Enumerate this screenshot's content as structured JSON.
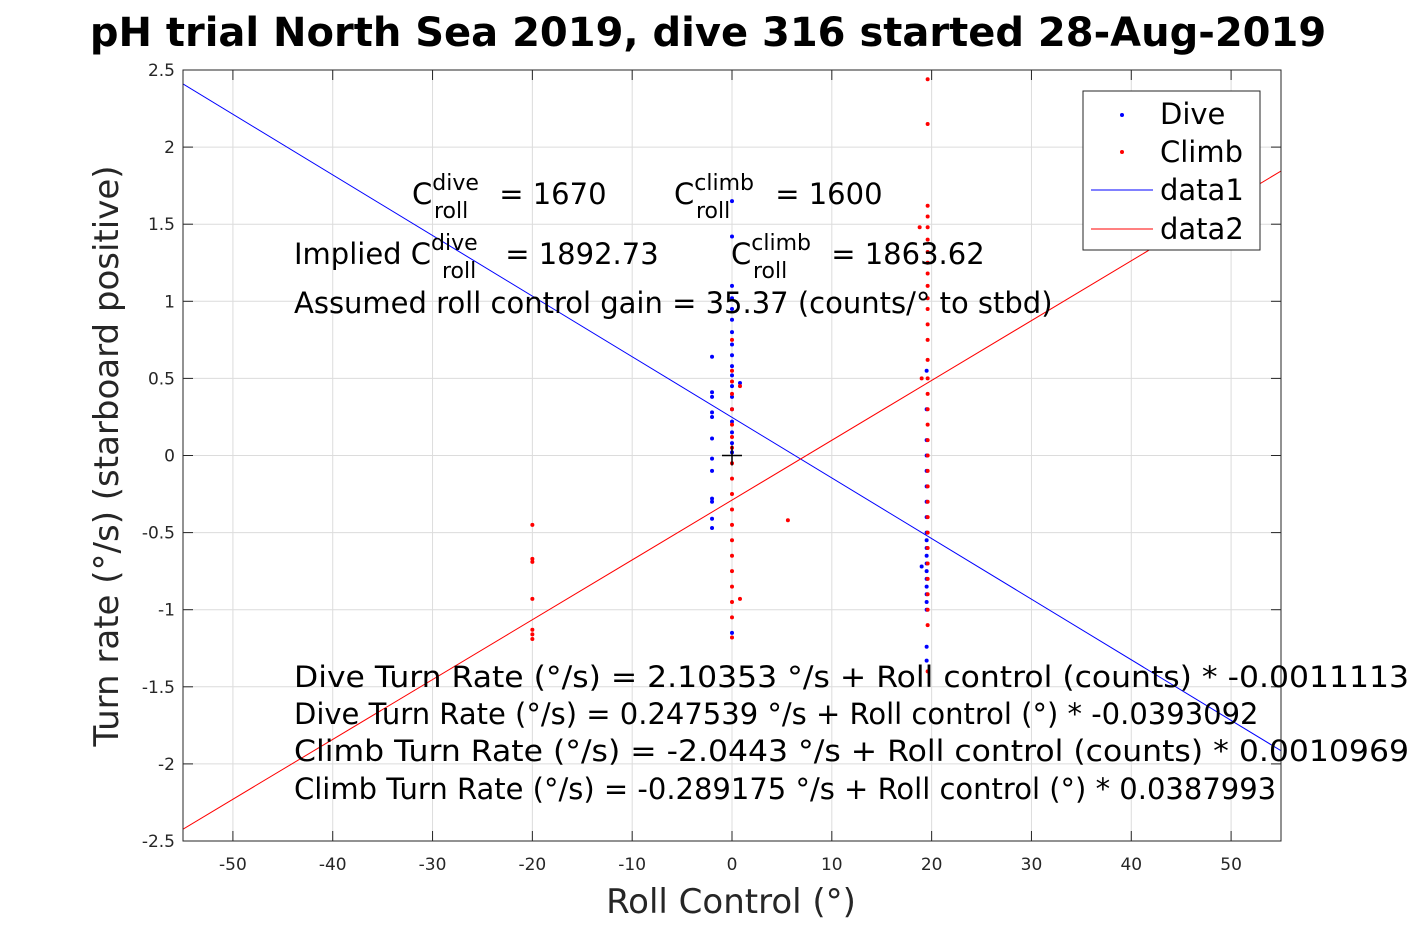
{
  "title": "pH trial North Sea 2019, dive 316 started 28-Aug-2019",
  "chart_data": {
    "type": "scatter",
    "xlabel": "Roll Control (°)",
    "ylabel": "Turn rate (°/s) (starboard positive)",
    "xlim": [
      -55,
      55
    ],
    "ylim": [
      -2.5,
      2.5
    ],
    "xticks": [
      -50,
      -40,
      -30,
      -20,
      -10,
      0,
      10,
      20,
      30,
      40,
      50
    ],
    "yticks": [
      -2.5,
      -2,
      -1.5,
      -1,
      -0.5,
      0,
      0.5,
      1,
      1.5,
      2,
      2.5
    ],
    "grid": true,
    "legend_position": "top-right",
    "series": [
      {
        "name": "Dive",
        "kind": "points",
        "color": "#0000ff",
        "points": [
          [
            0,
            1.65
          ],
          [
            0,
            1.42
          ],
          [
            0,
            1.1
          ],
          [
            0,
            1.02
          ],
          [
            0,
            0.95
          ],
          [
            0,
            0.88
          ],
          [
            0,
            0.8
          ],
          [
            0,
            0.72
          ],
          [
            0,
            0.65
          ],
          [
            0,
            0.58
          ],
          [
            0,
            0.52
          ],
          [
            0,
            0.45
          ],
          [
            0,
            0.38
          ],
          [
            0,
            0.3
          ],
          [
            0,
            0.22
          ],
          [
            0,
            0.15
          ],
          [
            0,
            0.08
          ],
          [
            0,
            0.02
          ],
          [
            0,
            -1.15
          ],
          [
            0.8,
            0.47
          ],
          [
            -2,
            0.64
          ],
          [
            -2,
            0.41
          ],
          [
            -2,
            0.38
          ],
          [
            -2,
            0.28
          ],
          [
            -2,
            0.25
          ],
          [
            -2,
            0.11
          ],
          [
            -2,
            -0.02
          ],
          [
            -2,
            -0.1
          ],
          [
            -2,
            -0.28
          ],
          [
            -2,
            -0.3
          ],
          [
            -2,
            -0.41
          ],
          [
            -2,
            -0.47
          ],
          [
            19.5,
            0.55
          ],
          [
            19.5,
            0.3
          ],
          [
            19.5,
            0.1
          ],
          [
            19.5,
            0.0
          ],
          [
            19.5,
            -0.1
          ],
          [
            19.5,
            -0.2
          ],
          [
            19.5,
            -0.3
          ],
          [
            19.5,
            -0.4
          ],
          [
            19.5,
            -0.5
          ],
          [
            19.5,
            -0.55
          ],
          [
            19.5,
            -0.6
          ],
          [
            19.5,
            -0.65
          ],
          [
            19.5,
            -0.7
          ],
          [
            19.5,
            -0.75
          ],
          [
            19.5,
            -0.8
          ],
          [
            19.5,
            -0.85
          ],
          [
            19.5,
            -0.9
          ],
          [
            19.5,
            -0.95
          ],
          [
            19.5,
            -1.0
          ],
          [
            19.5,
            -1.24
          ],
          [
            19.5,
            -1.33
          ],
          [
            19,
            -0.72
          ]
        ]
      },
      {
        "name": "Climb",
        "kind": "points",
        "color": "#ff0000",
        "points": [
          [
            19.6,
            2.44
          ],
          [
            19.6,
            2.15
          ],
          [
            19.6,
            1.62
          ],
          [
            19.6,
            1.55
          ],
          [
            19.6,
            1.48
          ],
          [
            19.6,
            1.4
          ],
          [
            19.6,
            1.32
          ],
          [
            19.6,
            1.25
          ],
          [
            19.6,
            1.18
          ],
          [
            19.6,
            1.1
          ],
          [
            19.6,
            1.02
          ],
          [
            19.6,
            0.95
          ],
          [
            19.6,
            0.85
          ],
          [
            19.6,
            0.75
          ],
          [
            19.6,
            0.62
          ],
          [
            19.6,
            0.5
          ],
          [
            19.6,
            0.4
          ],
          [
            19.6,
            0.3
          ],
          [
            19.6,
            0.2
          ],
          [
            19.6,
            0.1
          ],
          [
            19.6,
            0.0
          ],
          [
            19.6,
            -0.1
          ],
          [
            19.6,
            -0.2
          ],
          [
            19.6,
            -0.3
          ],
          [
            19.6,
            -0.4
          ],
          [
            19.6,
            -0.5
          ],
          [
            19.6,
            -0.6
          ],
          [
            19.6,
            -0.7
          ],
          [
            19.6,
            -0.8
          ],
          [
            19.6,
            -0.9
          ],
          [
            19.6,
            -1.0
          ],
          [
            19.6,
            -1.1
          ],
          [
            19.6,
            -1.4
          ],
          [
            18.8,
            1.48
          ],
          [
            19,
            0.5
          ],
          [
            0,
            0.75
          ],
          [
            0,
            0.55
          ],
          [
            0,
            0.48
          ],
          [
            0,
            0.4
          ],
          [
            0,
            0.3
          ],
          [
            0,
            0.2
          ],
          [
            0,
            0.12
          ],
          [
            0,
            0.05
          ],
          [
            0,
            -0.05
          ],
          [
            0,
            -0.15
          ],
          [
            0,
            -0.25
          ],
          [
            0,
            -0.35
          ],
          [
            0,
            -0.45
          ],
          [
            0,
            -0.55
          ],
          [
            0,
            -0.65
          ],
          [
            0,
            -0.75
          ],
          [
            0,
            -0.85
          ],
          [
            0,
            -0.95
          ],
          [
            0,
            -1.05
          ],
          [
            0,
            -1.18
          ],
          [
            0.8,
            -0.93
          ],
          [
            0.8,
            0.45
          ],
          [
            -20,
            -0.45
          ],
          [
            -20,
            -0.67
          ],
          [
            -20,
            -0.69
          ],
          [
            -20,
            -0.93
          ],
          [
            -20,
            -1.13
          ],
          [
            -20,
            -1.16
          ],
          [
            -20,
            -1.19
          ],
          [
            5.6,
            -0.42
          ]
        ]
      },
      {
        "name": "data1",
        "kind": "line",
        "color": "#0000ff",
        "intercept": 0.247539,
        "slope": -0.0393092
      },
      {
        "name": "data2",
        "kind": "line",
        "color": "#ff0000",
        "intercept": -0.289175,
        "slope": 0.0387993
      }
    ],
    "marker": {
      "symbol": "+",
      "x": 0,
      "y": 0,
      "color": "#000000"
    }
  },
  "annotations": {
    "c_dive_base": "C",
    "c_dive_sup": "dive",
    "c_dive_sub": "roll",
    "c_dive_value": " = 1670",
    "c_climb_base": "C",
    "c_climb_sup": "climb",
    "c_climb_sub": "roll",
    "c_climb_value": " = 1600",
    "implied_prefix": "Implied C",
    "implied_dive_sup": "dive",
    "implied_dive_sub": "roll",
    "implied_dive_value": " = 1892.73",
    "implied_climb_base": "C",
    "implied_climb_sup": "climb",
    "implied_climb_sub": "roll",
    "implied_climb_value": " = 1863.62",
    "gain": "Assumed roll control gain = 35.37 (counts/° to stbd)",
    "eq1": "Dive Turn Rate (°/s) = 2.10353 °/s + Roll control (counts) * -0.0011113",
    "eq2": "Dive Turn Rate (°/s) = 0.247539 °/s + Roll control (°) * -0.0393092",
    "eq3": "Climb Turn Rate (°/s) = -2.0443 °/s + Roll control (counts) * 0.0010969",
    "eq4": "Climb Turn Rate (°/s) = -0.289175 °/s + Roll control (°) * 0.0387993"
  }
}
